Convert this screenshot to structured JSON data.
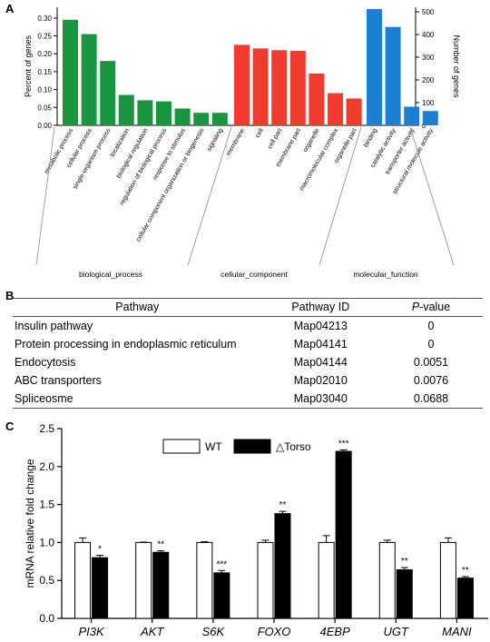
{
  "panel_labels": {
    "a": "A",
    "b": "B",
    "c": "C"
  },
  "chart_data": [
    {
      "type": "bar",
      "panel": "A",
      "ylabel": "Percent of genes",
      "y2label": "Number of genes",
      "ylim": [
        0,
        0.33
      ],
      "yticks": [
        "0.00",
        "0.05",
        "0.10",
        "0.15",
        "0.20",
        "0.25",
        "0.30"
      ],
      "y2lim": [
        0,
        520
      ],
      "y2ticks": [
        "0",
        "100",
        "200",
        "300",
        "400",
        "500"
      ],
      "groups": [
        {
          "name": "biological_process",
          "color": "#1a9641",
          "categories": [
            "metabolic process",
            "cellular process",
            "single-organism process",
            "localization",
            "biological regulation",
            "regulation of biological process",
            "response to stimulus",
            "cellular component organization or biogenesis",
            "signaling"
          ],
          "values": [
            0.295,
            0.255,
            0.18,
            0.085,
            0.07,
            0.067,
            0.047,
            0.035,
            0.035
          ]
        },
        {
          "name": "cellular_component",
          "color": "#f03b2f",
          "categories": [
            "membrane",
            "cell",
            "cell part",
            "membrane part",
            "organelle",
            "macromolecular complex",
            "organelle part"
          ],
          "values": [
            0.225,
            0.215,
            0.21,
            0.208,
            0.145,
            0.09,
            0.075
          ]
        },
        {
          "name": "molecular_function",
          "color": "#1c7fd1",
          "categories": [
            "binding",
            "catalytic activity",
            "transporter activity",
            "structural molecule activity"
          ],
          "values": [
            0.325,
            0.275,
            0.052,
            0.04
          ]
        }
      ]
    },
    {
      "type": "bar",
      "panel": "C",
      "ylabel": "mRNA relative fold change",
      "ylim": [
        0,
        2.5
      ],
      "yticks": [
        "0.0",
        "0.5",
        "1.0",
        "1.5",
        "2.0",
        "2.5"
      ],
      "categories": [
        "PI3K",
        "AKT",
        "S6K",
        "FOXO",
        "4EBP",
        "UGT",
        "MANI"
      ],
      "series": [
        {
          "name": "WT",
          "color": "#ffffff",
          "values": [
            1.0,
            1.0,
            1.0,
            1.0,
            1.0,
            1.0,
            1.0
          ],
          "errors": [
            0.06,
            0.005,
            0.01,
            0.03,
            0.09,
            0.03,
            0.06
          ]
        },
        {
          "name": "△Torso",
          "color": "#000000",
          "values": [
            0.8,
            0.87,
            0.6,
            1.38,
            2.2,
            0.64,
            0.53
          ],
          "errors": [
            0.03,
            0.02,
            0.03,
            0.03,
            0.02,
            0.03,
            0.02
          ]
        }
      ],
      "significance": [
        "*",
        "**",
        "***",
        "**",
        "***",
        "**",
        "**"
      ]
    }
  ],
  "table": {
    "headers": {
      "pathway": "Pathway",
      "id": "Pathway ID",
      "p_italic": "P",
      "p_rest": "-value"
    },
    "rows": [
      {
        "pathway": "Insulin pathway",
        "id": "Map04213",
        "p": "0"
      },
      {
        "pathway": "Protein processing in endoplasmic reticulum",
        "id": "Map04141",
        "p": "0"
      },
      {
        "pathway": "Endocytosis",
        "id": "Map04144",
        "p": "0.0051"
      },
      {
        "pathway": "ABC transporters",
        "id": "Map02010",
        "p": "0.0076"
      },
      {
        "pathway": "Spliceosme",
        "id": "Map03040",
        "p": "0.0688"
      }
    ]
  }
}
